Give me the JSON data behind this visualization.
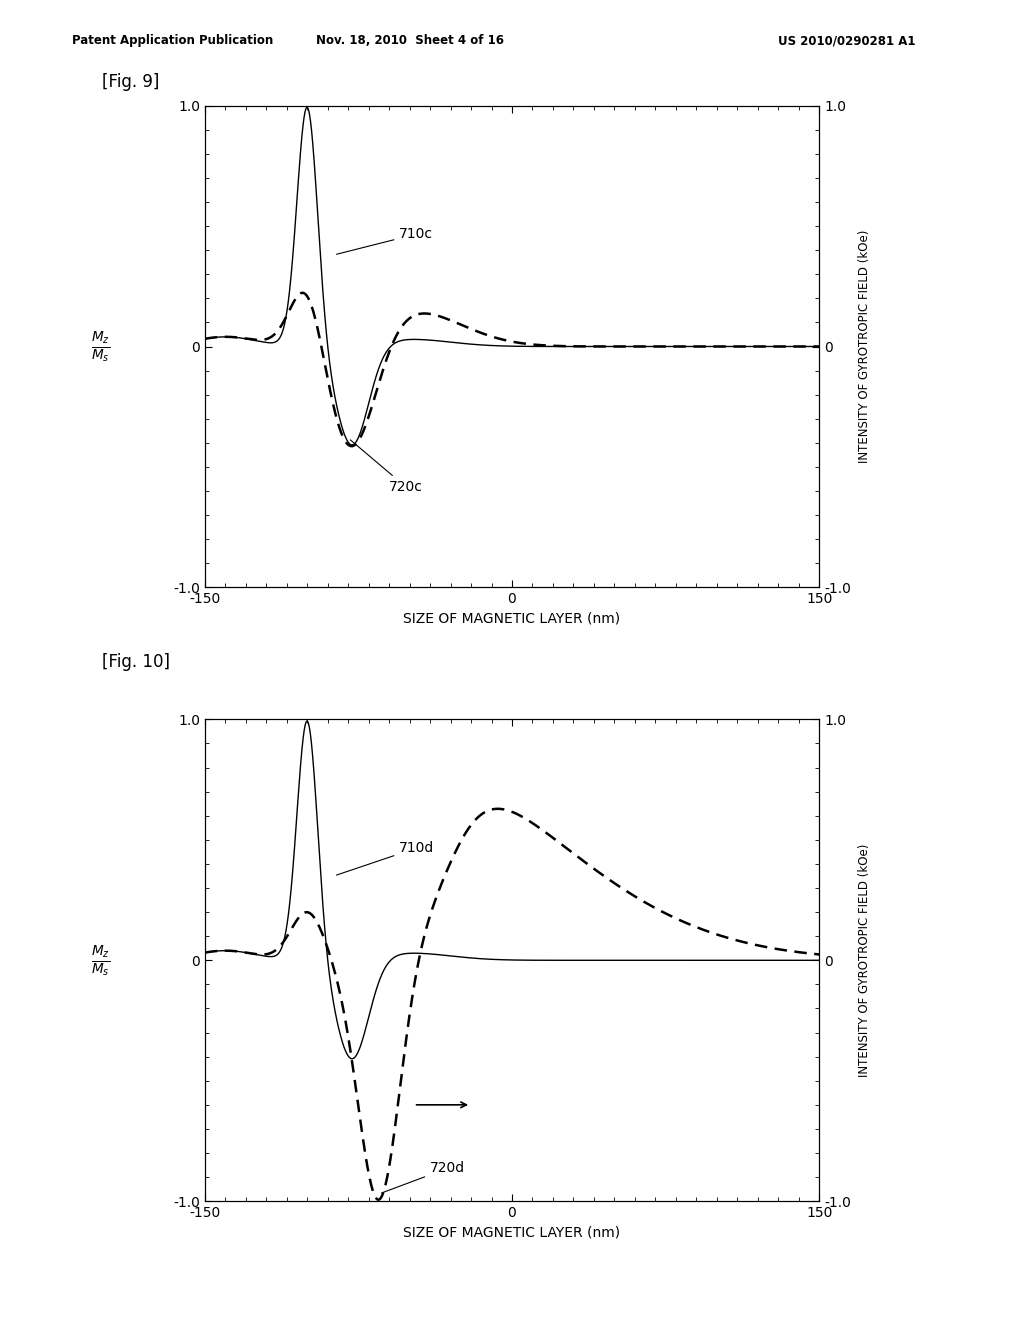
{
  "header_left": "Patent Application Publication",
  "header_center": "Nov. 18, 2010  Sheet 4 of 16",
  "header_right": "US 2010/0290281 A1",
  "fig9_label": "[Fig. 9]",
  "fig10_label": "[Fig. 10]",
  "xlabel": "SIZE OF MAGNETIC LAYER (nm)",
  "ylabel_right": "INTENSITY OF GYROTROPIC FIELD (kOe)",
  "xlim": [
    -150,
    150
  ],
  "ylim": [
    -1.0,
    1.0
  ],
  "xticks": [
    -150,
    0,
    150
  ],
  "yticks": [
    -1.0,
    0,
    1.0
  ],
  "label_710c": "710c",
  "label_720c": "720c",
  "label_710d": "710d",
  "label_720d": "720d",
  "background_color": "#ffffff"
}
